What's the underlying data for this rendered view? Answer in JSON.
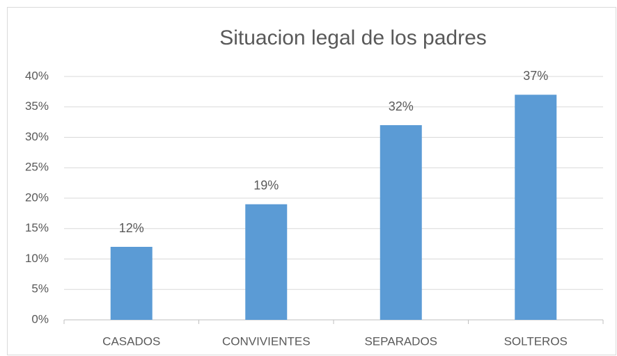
{
  "chart_data": {
    "type": "bar",
    "title": "Situacion legal de los padres",
    "categories": [
      "CASADOS",
      "CONVIVIENTES",
      "SEPARADOS",
      "SOLTEROS"
    ],
    "values": [
      12,
      19,
      32,
      37
    ],
    "value_labels": [
      "12%",
      "19%",
      "32%",
      "37%"
    ],
    "color": "#5b9bd5",
    "ylim": [
      0,
      40
    ],
    "yticks": [
      {
        "value": 0,
        "label": "0%"
      },
      {
        "value": 5,
        "label": "5%"
      },
      {
        "value": 10,
        "label": "10%"
      },
      {
        "value": 15,
        "label": "15%"
      },
      {
        "value": 20,
        "label": "20%"
      },
      {
        "value": 25,
        "label": "25%"
      },
      {
        "value": 30,
        "label": "30%"
      },
      {
        "value": 35,
        "label": "35%"
      },
      {
        "value": 40,
        "label": "40%"
      }
    ],
    "grid": true
  }
}
